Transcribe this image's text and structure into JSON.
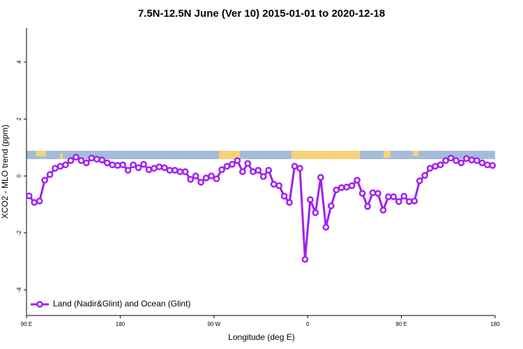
{
  "chart_data": {
    "type": "line",
    "title": "7.5N-12.5N June (Ver 10)   2015-01-01 to 2020-12-18",
    "x_label": "Longitude (deg E)",
    "y_label": "XCO2 - MLO trend (ppm)",
    "xlim": [
      90,
      540
    ],
    "ylim": [
      -4.9,
      5.2
    ],
    "xticks": [
      {
        "value": 90,
        "label": "90 E"
      },
      180,
      {
        "value": 270,
        "label": "90 W"
      },
      {
        "value": 360,
        "label": "0"
      },
      {
        "value": 450,
        "label": "90 E"
      },
      {
        "value": 540,
        "label": "180"
      }
    ],
    "yticks": [
      -4,
      -2,
      0,
      2,
      4
    ],
    "legend": "lower left",
    "x": [
      92.5,
      97.5,
      102.5,
      107.5,
      112.5,
      117.5,
      122.5,
      127.5,
      132.5,
      137.5,
      142.5,
      147.5,
      152.5,
      157.5,
      162.5,
      167.5,
      172.5,
      177.5,
      182.5,
      187.5,
      192.5,
      197.5,
      202.5,
      207.5,
      212.5,
      217.5,
      222.5,
      227.5,
      232.5,
      237.5,
      242.5,
      247.5,
      252.5,
      257.5,
      262.5,
      267.5,
      272.5,
      277.5,
      282.5,
      287.5,
      292.5,
      297.5,
      302.5,
      307.5,
      312.5,
      317.5,
      322.5,
      327.5,
      332.5,
      337.5,
      342.5,
      347.5,
      352.5,
      357.5,
      362.5,
      367.5,
      372.5,
      377.5,
      382.5,
      387.5,
      392.5,
      397.5,
      402.5,
      407.5,
      412.5,
      417.5,
      422.5,
      427.5,
      432.5,
      437.5,
      442.5,
      447.5,
      452.5,
      457.5,
      462.5,
      467.5,
      472.5,
      477.5,
      482.5,
      487.5,
      492.5,
      497.5,
      502.5,
      507.5,
      512.5,
      517.5,
      522.5,
      527.5,
      532.5,
      537.5
    ],
    "series": [
      {
        "name": "Land (Nadir&Glint) and Ocean (Glint)",
        "color": "#a020f0",
        "values": [
          -0.7,
          -0.93,
          -0.88,
          -0.15,
          0.05,
          0.27,
          0.34,
          0.39,
          0.54,
          0.66,
          0.54,
          0.46,
          0.63,
          0.59,
          0.56,
          0.46,
          0.39,
          0.37,
          0.39,
          0.2,
          0.39,
          0.29,
          0.41,
          0.22,
          0.27,
          0.32,
          0.29,
          0.2,
          0.2,
          0.15,
          0.15,
          -0.12,
          0,
          -0.22,
          -0.07,
          0,
          -0.1,
          0.22,
          0.34,
          0.41,
          0.54,
          0.15,
          0.44,
          0.15,
          0.2,
          -0.02,
          0.2,
          -0.29,
          -0.34,
          -0.71,
          -0.93,
          0.34,
          0.27,
          -2.93,
          -0.83,
          -1.29,
          -0.05,
          -1.8,
          -1.05,
          -0.49,
          -0.41,
          -0.39,
          -0.34,
          -0.15,
          -0.61,
          -1.07,
          -0.59,
          -0.61,
          -1.2,
          -0.73,
          -0.73,
          -0.9,
          -0.71,
          -0.9,
          -0.88,
          -0.17,
          0.02,
          0.27,
          0.34,
          0.39,
          0.54,
          0.63,
          0.54,
          0.46,
          0.61,
          0.56,
          0.54,
          0.46,
          0.39,
          0.37
        ]
      }
    ]
  }
}
